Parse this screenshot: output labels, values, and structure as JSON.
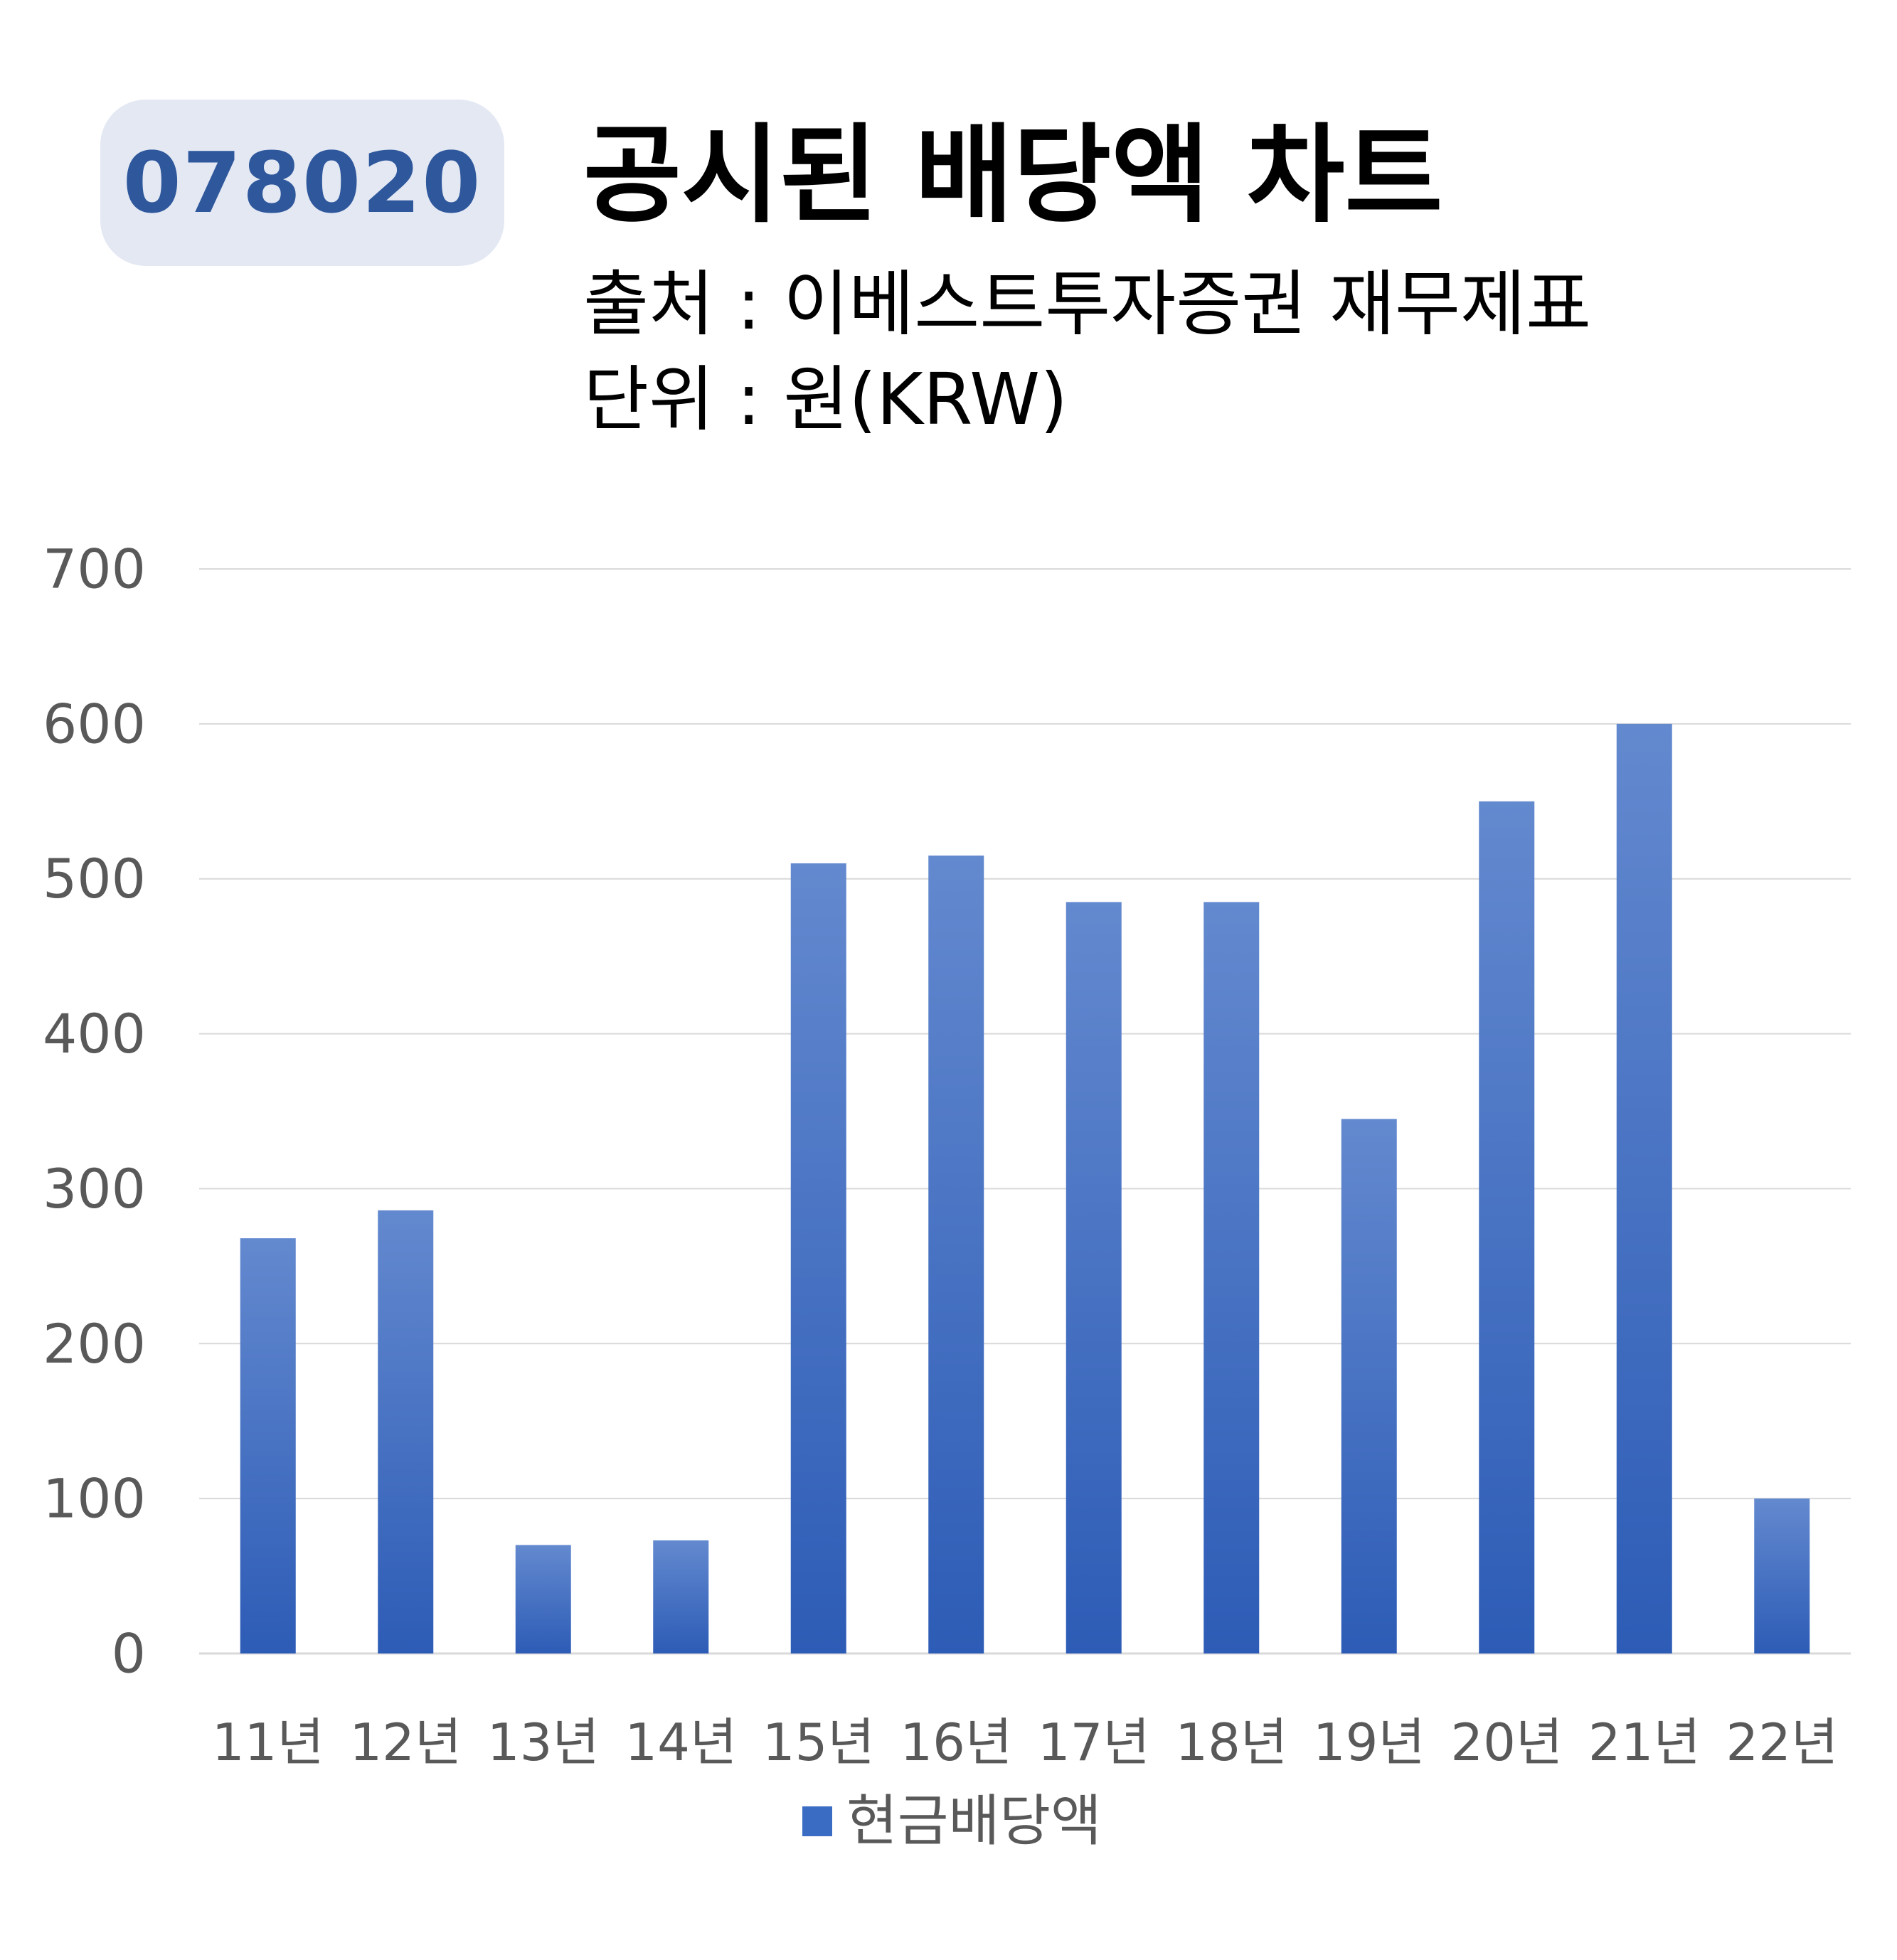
{
  "badge": {
    "code": "078020"
  },
  "header": {
    "title": "공시된 배당액 차트",
    "source": "출처 : 이베스트투자증권 재무제표",
    "unit": "단위 : 원(KRW)"
  },
  "colors": {
    "bar_top": "#6389cf",
    "bar_bottom": "#2d5cb6",
    "badge_bg": "#e3e8f3",
    "badge_text": "#2e579c",
    "grid": "#d9d9d9",
    "axis_text": "#595959"
  },
  "chart_data": {
    "type": "bar",
    "categories": [
      "11년",
      "12년",
      "13년",
      "14년",
      "15년",
      "16년",
      "17년",
      "18년",
      "19년",
      "20년",
      "21년",
      "22년"
    ],
    "series": [
      {
        "name": "현금배당액",
        "values": [
          268,
          286,
          70,
          73,
          510,
          515,
          485,
          485,
          345,
          550,
          600,
          100
        ]
      }
    ],
    "ylim": [
      0,
      700
    ],
    "yticks": [
      0,
      100,
      200,
      300,
      400,
      500,
      600,
      700
    ],
    "grid": true,
    "legend": "bottom",
    "title": "",
    "xlabel": "",
    "ylabel": ""
  }
}
